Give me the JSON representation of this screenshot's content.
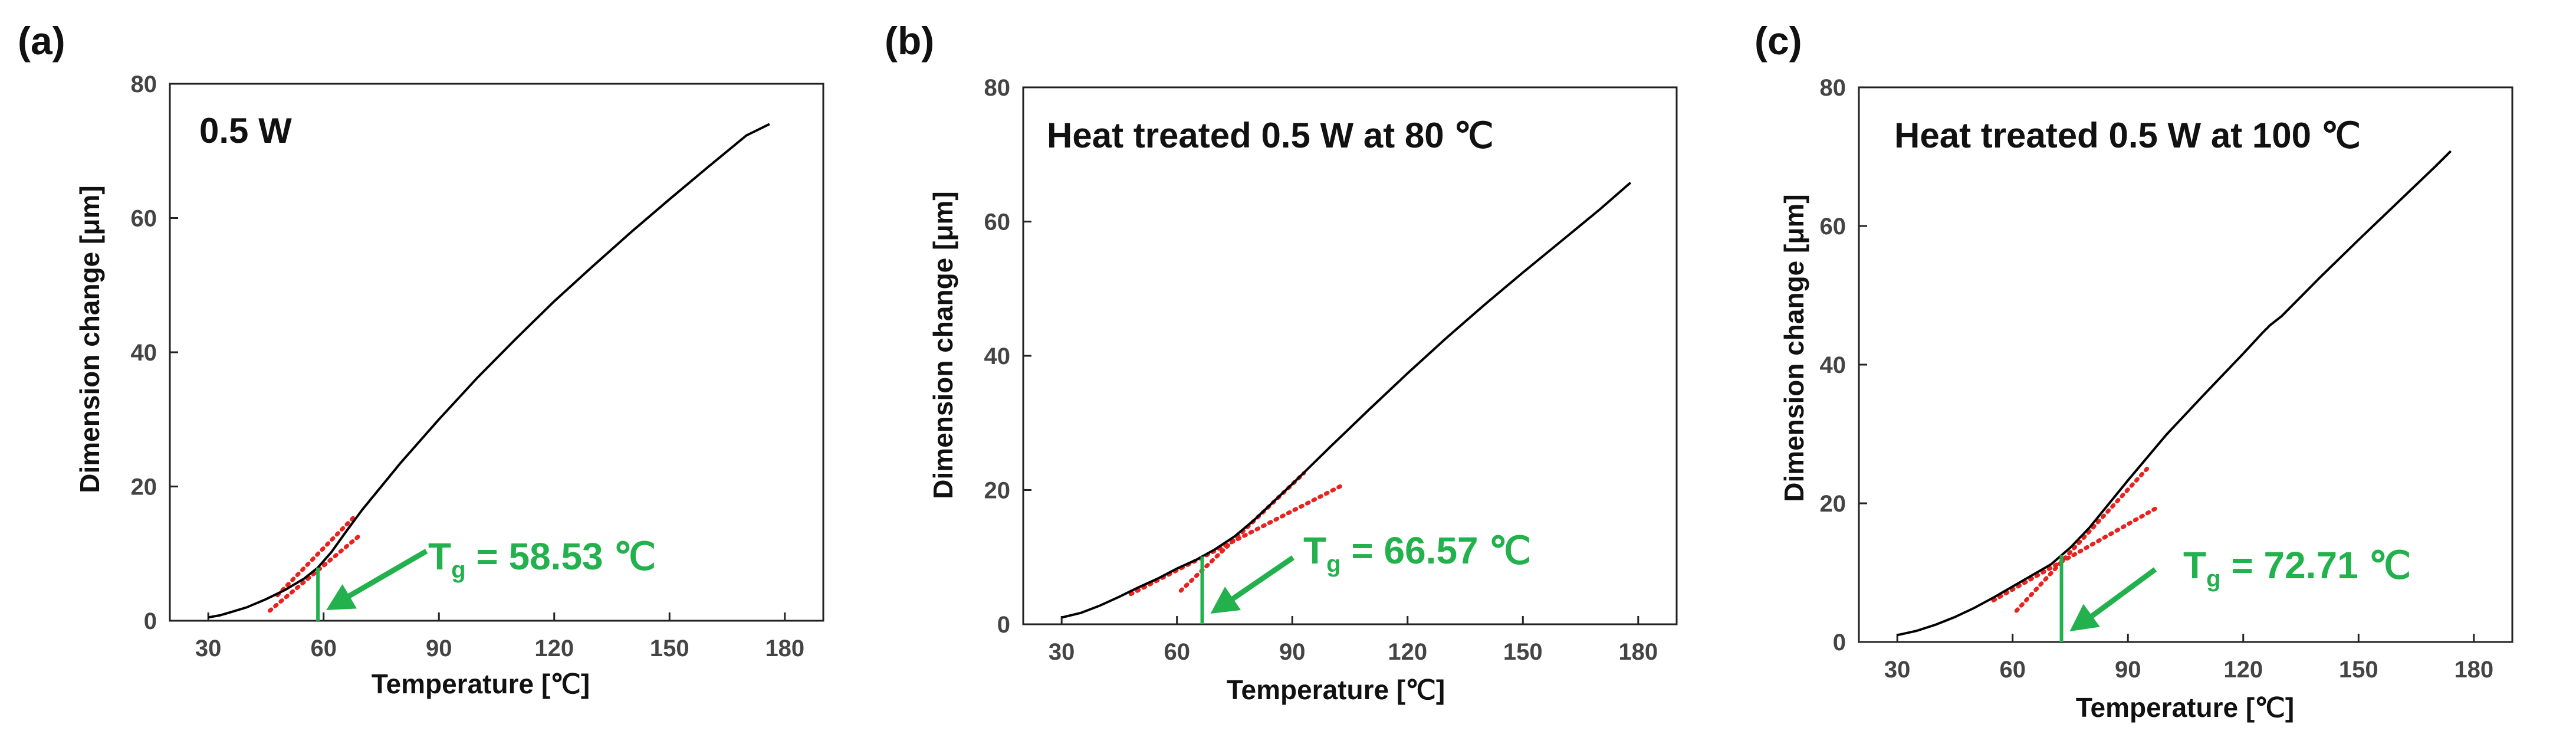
{
  "chart_data": [
    {
      "panel_label": "(a)",
      "type": "line",
      "title": "0.5 W",
      "xlabel": "Temperature [℃]",
      "ylabel": "Dimension change [μm]",
      "xlim": [
        20,
        190
      ],
      "ylim": [
        0,
        80
      ],
      "xticks": [
        30,
        60,
        90,
        120,
        150,
        180
      ],
      "yticks": [
        0,
        20,
        40,
        60,
        80
      ],
      "series": [
        {
          "name": "dimension change",
          "x": [
            30,
            33,
            36,
            40,
            45,
            50,
            55,
            58.5,
            62,
            66,
            70,
            80,
            90,
            100,
            110,
            120,
            130,
            140,
            150,
            160,
            170,
            176
          ],
          "y": [
            0.5,
            0.8,
            1.3,
            2.0,
            3.2,
            4.6,
            6.3,
            7.9,
            10.2,
            13.4,
            16.5,
            23.5,
            30.0,
            36.2,
            42.0,
            47.6,
            52.8,
            57.9,
            62.8,
            67.6,
            72.3,
            74.0
          ]
        }
      ],
      "tangent_lines": [
        {
          "x": [
            46,
            70
          ],
          "y": [
            1.5,
            13.0
          ]
        },
        {
          "x": [
            48,
            68
          ],
          "y": [
            3.8,
            15.5
          ]
        }
      ],
      "tg": {
        "value": 58.53,
        "label": "T",
        "subscript": "g",
        "text": " = 58.53 ℃"
      },
      "colors": {
        "curve": "#000000",
        "tangent": "#e8231f",
        "marker": "#22b14c"
      }
    },
    {
      "panel_label": "(b)",
      "type": "line",
      "title": "Heat treated 0.5 W at 80 ℃",
      "xlabel": "Temperature [℃]",
      "ylabel": "Dimension change [μm]",
      "xlim": [
        20,
        190
      ],
      "ylim": [
        0,
        80
      ],
      "xticks": [
        30,
        60,
        90,
        120,
        150,
        180
      ],
      "yticks": [
        0,
        20,
        40,
        60,
        80
      ],
      "series": [
        {
          "name": "dimension change",
          "x": [
            30,
            35,
            40,
            45,
            50,
            55,
            60,
            65,
            70,
            75,
            80,
            90,
            100,
            110,
            120,
            130,
            140,
            150,
            160,
            170,
            178
          ],
          "y": [
            1.0,
            1.7,
            2.8,
            4.1,
            5.5,
            6.8,
            8.3,
            9.6,
            11.2,
            13.1,
            15.5,
            20.9,
            26.5,
            32.0,
            37.4,
            42.6,
            47.6,
            52.4,
            57.1,
            61.8,
            65.8
          ]
        }
      ],
      "tangent_lines": [
        {
          "x": [
            48,
            103
          ],
          "y": [
            4.5,
            20.7
          ]
        },
        {
          "x": [
            61,
            93
          ],
          "y": [
            5.0,
            22.5
          ]
        }
      ],
      "tg": {
        "value": 66.57,
        "label": "T",
        "subscript": "g",
        "text": " = 66.57 ℃"
      },
      "colors": {
        "curve": "#000000",
        "tangent": "#e8231f",
        "marker": "#22b14c"
      }
    },
    {
      "panel_label": "(c)",
      "type": "line",
      "title": "Heat treated 0.5 W at 100 ℃",
      "xlabel": "Temperature [℃]",
      "ylabel": "Dimension change [μm]",
      "xlim": [
        20,
        190
      ],
      "ylim": [
        0,
        80
      ],
      "xticks": [
        30,
        60,
        90,
        120,
        150,
        180
      ],
      "yticks": [
        0,
        20,
        40,
        60,
        80
      ],
      "series": [
        {
          "name": "dimension change",
          "x": [
            30,
            35,
            40,
            45,
            50,
            55,
            60,
            65,
            70,
            75,
            80,
            90,
            100,
            110,
            120,
            125,
            127,
            130,
            140,
            150,
            160,
            170,
            174
          ],
          "y": [
            1.0,
            1.6,
            2.5,
            3.6,
            4.9,
            6.4,
            8.0,
            9.6,
            11.2,
            13.6,
            16.5,
            23.3,
            29.9,
            35.8,
            41.6,
            44.6,
            45.7,
            47.0,
            52.6,
            58.0,
            63.3,
            68.6,
            70.8
          ]
        }
      ],
      "tangent_lines": [
        {
          "x": [
            55,
            98
          ],
          "y": [
            6.0,
            19.5
          ]
        },
        {
          "x": [
            61,
            95
          ],
          "y": [
            4.5,
            25.0
          ]
        }
      ],
      "tg": {
        "value": 72.71,
        "label": "T",
        "subscript": "g",
        "text": " = 72.71 ℃"
      },
      "colors": {
        "curve": "#000000",
        "tangent": "#e8231f",
        "marker": "#22b14c"
      }
    }
  ]
}
